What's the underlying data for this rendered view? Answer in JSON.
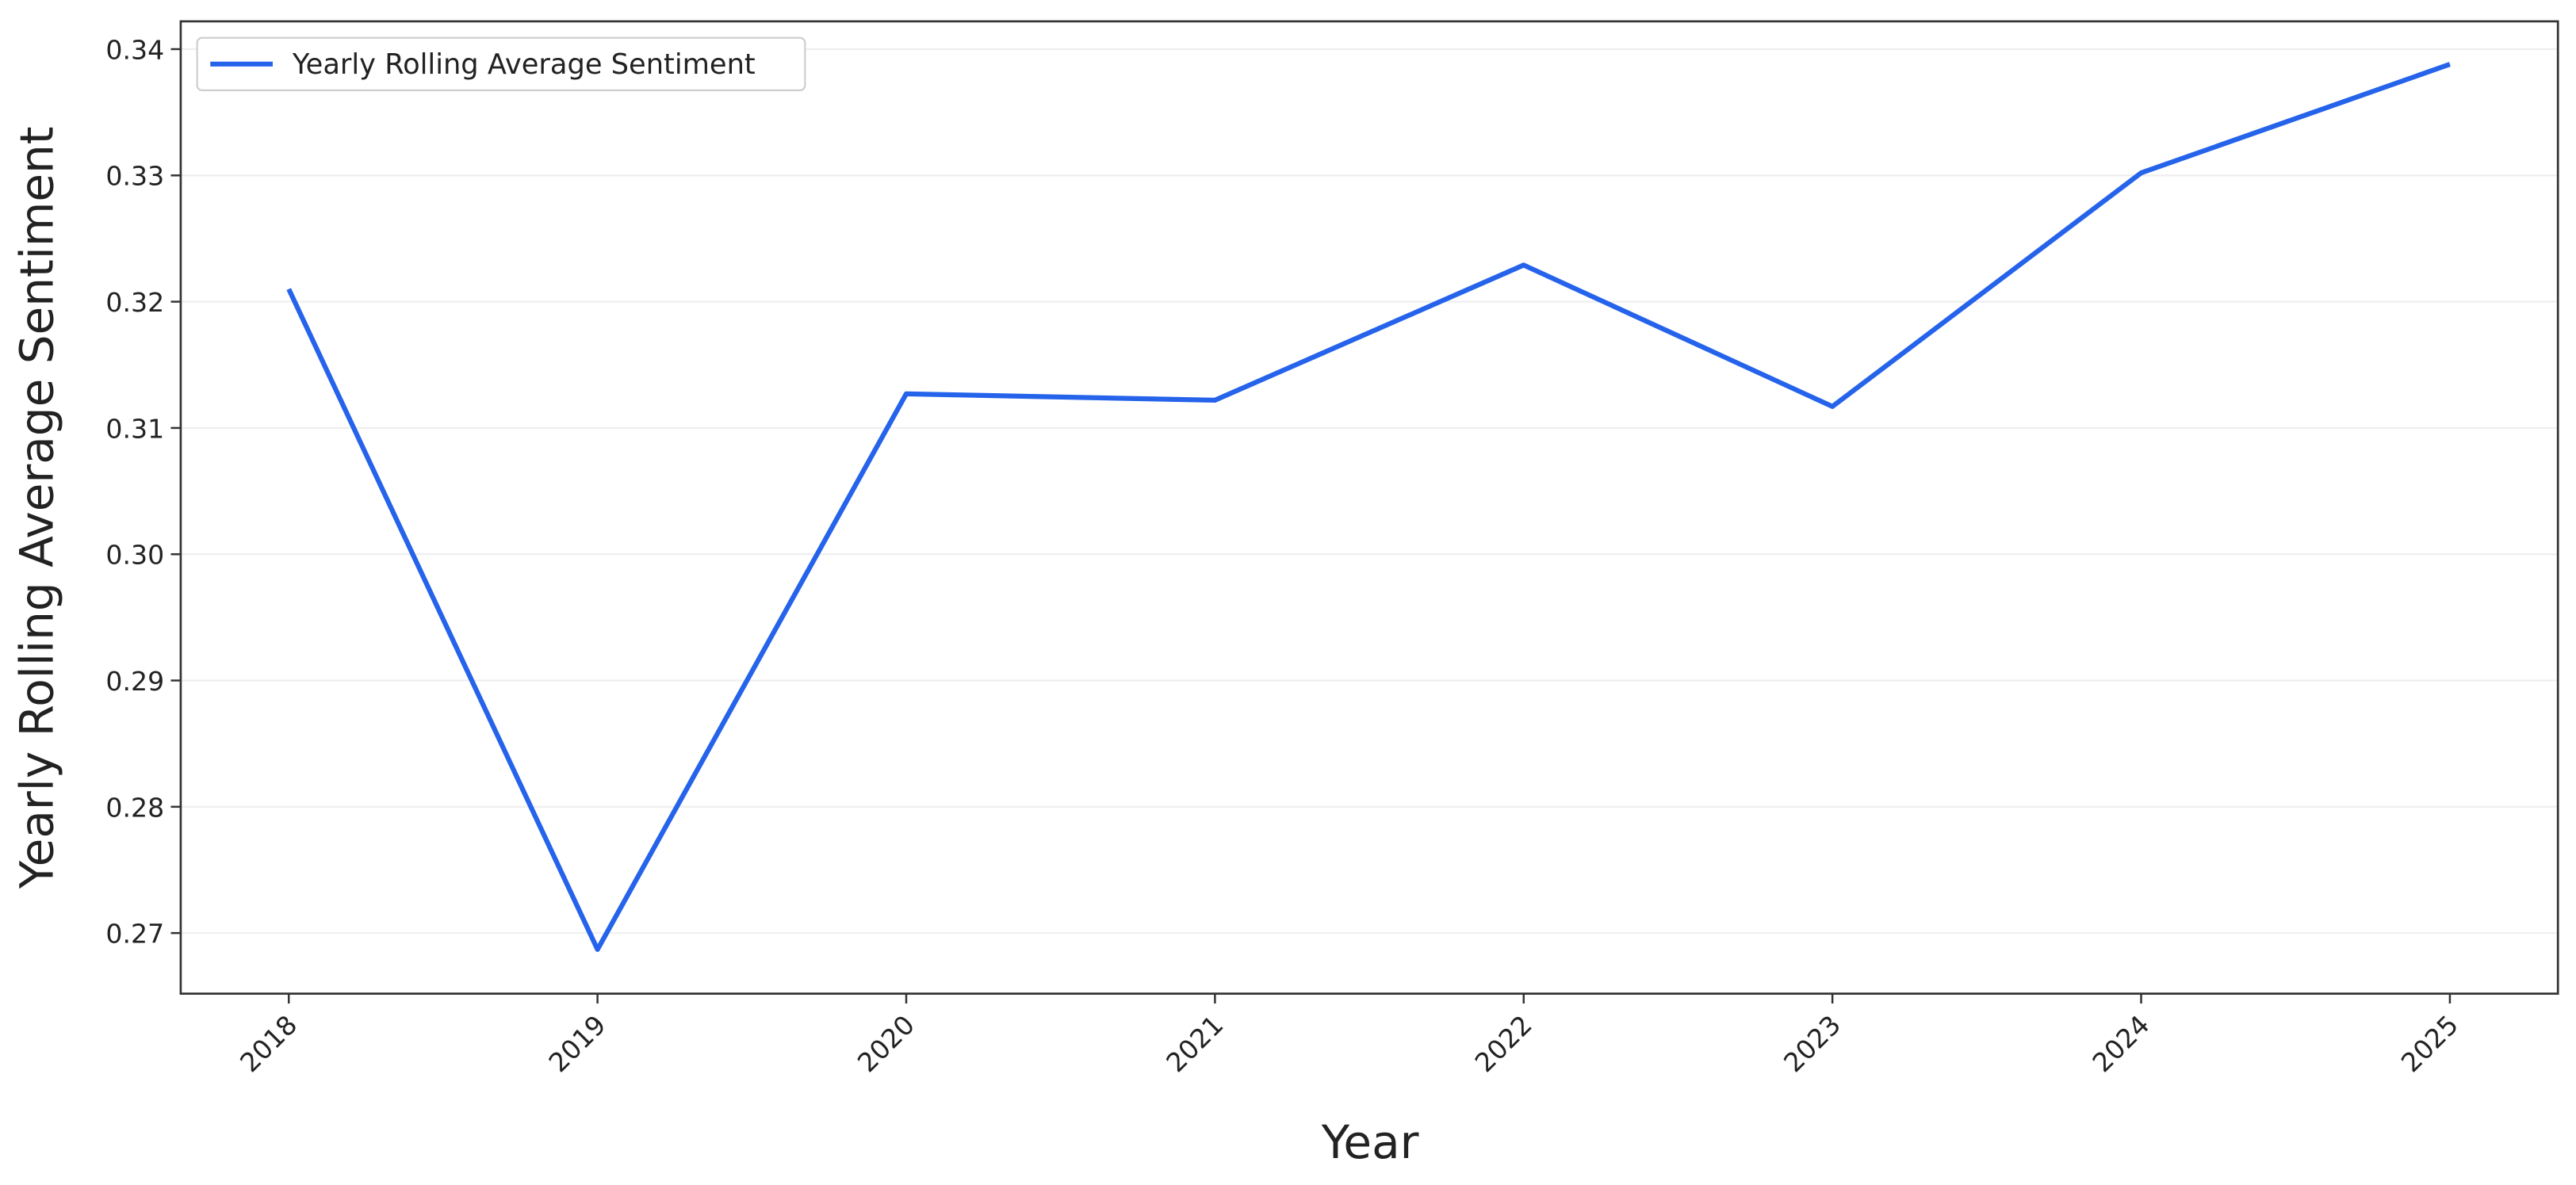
{
  "chart_data": {
    "type": "line",
    "x_label": "Year",
    "y_label": "Yearly Rolling Average Sentiment",
    "x": [
      2018,
      2019,
      2020,
      2021,
      2022,
      2023,
      2024,
      2025
    ],
    "series": [
      {
        "name": "Yearly Rolling Average Sentiment",
        "color": "#2563eb",
        "values": [
          0.321,
          0.2687,
          0.3127,
          0.3122,
          0.3229,
          0.3117,
          0.3302,
          0.3388
        ]
      }
    ],
    "xlim": [
      2017.65,
      2025.35
    ],
    "xticks": [
      2018,
      2019,
      2020,
      2021,
      2022,
      2023,
      2024,
      2025
    ],
    "ylim": [
      0.2652,
      0.3422
    ],
    "yticks": [
      0.27,
      0.28,
      0.29,
      {
        "value": 0.3,
        "label": "0.30"
      },
      0.31,
      0.32,
      0.33,
      0.34
    ],
    "grid": true,
    "legend": "upper-left"
  }
}
